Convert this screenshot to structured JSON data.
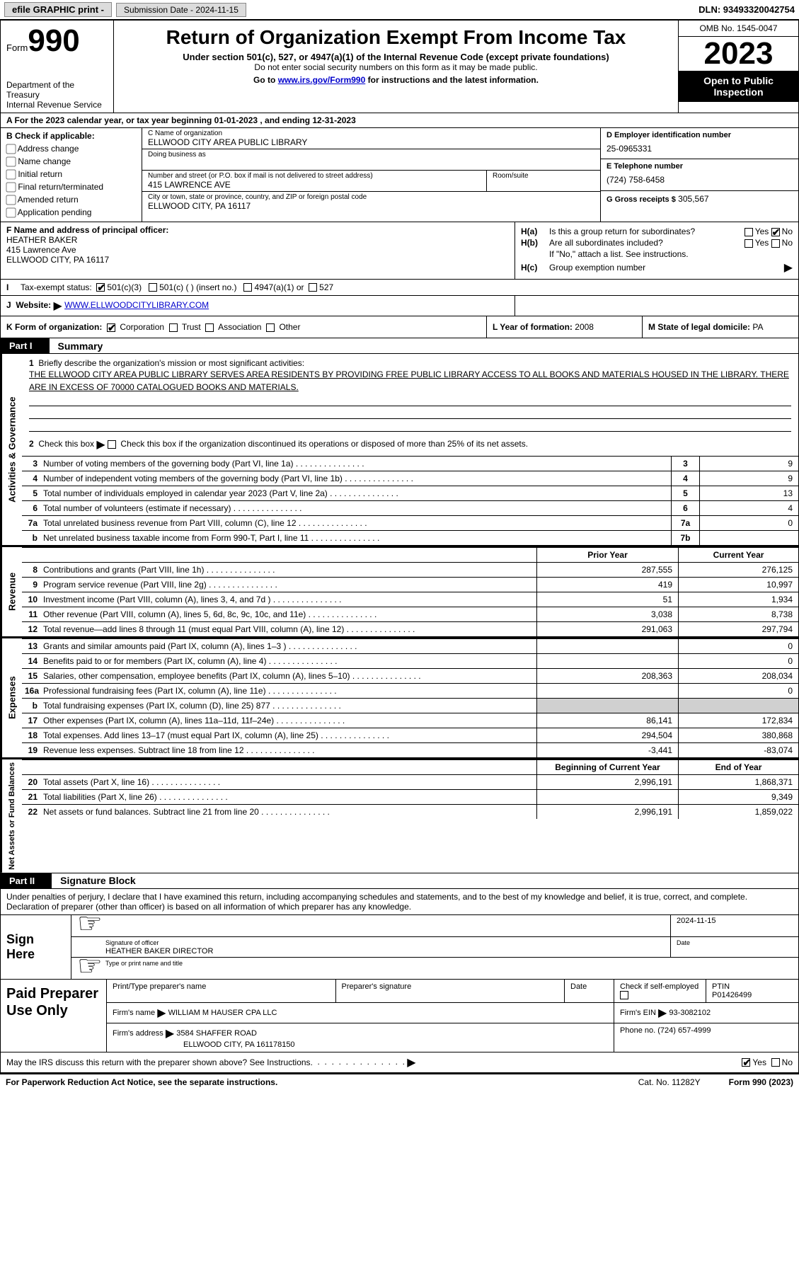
{
  "topbar": {
    "efile": "efile GRAPHIC print -",
    "submission_label": "Submission Date - 2024-11-15",
    "dln": "DLN: 93493320042754"
  },
  "header": {
    "form_label": "Form",
    "form_number": "990",
    "title": "Return of Organization Exempt From Income Tax",
    "sub1": "Under section 501(c), 527, or 4947(a)(1) of the Internal Revenue Code (except private foundations)",
    "sub2": "Do not enter social security numbers on this form as it may be made public.",
    "sub3_pre": "Go to ",
    "sub3_link": "www.irs.gov/Form990",
    "sub3_post": " for instructions and the latest information.",
    "dept": "Department of the Treasury",
    "irs": "Internal Revenue Service",
    "omb": "OMB No. 1545-0047",
    "year": "2023",
    "inspect": "Open to Public Inspection"
  },
  "lineA": "A For the 2023 calendar year, or tax year beginning 01-01-2023   , and ending 12-31-2023",
  "sectionB": {
    "hdr": "B Check if applicable:",
    "opts": [
      "Address change",
      "Name change",
      "Initial return",
      "Final return/terminated",
      "Amended return",
      "Application pending"
    ]
  },
  "sectionC": {
    "name_lbl": "C Name of organization",
    "name": "ELLWOOD CITY AREA PUBLIC LIBRARY",
    "dba_lbl": "Doing business as",
    "dba": "",
    "addr_lbl": "Number and street (or P.O. box if mail is not delivered to street address)",
    "addr": "415 LAWRENCE AVE",
    "suite_lbl": "Room/suite",
    "suite": "",
    "city_lbl": "City or town, state or province, country, and ZIP or foreign postal code",
    "city": "ELLWOOD CITY, PA  16117"
  },
  "sectionD": {
    "ein_lbl": "D Employer identification number",
    "ein": "25-0965331",
    "phone_lbl": "E Telephone number",
    "phone": "(724) 758-6458",
    "gross_lbl": "G Gross receipts $",
    "gross": "305,567"
  },
  "sectionF": {
    "lbl": "F Name and address of principal officer:",
    "name": "HEATHER BAKER",
    "addr1": "415 Lawrence Ave",
    "addr2": "ELLWOOD CITY, PA  16117"
  },
  "sectionH": {
    "ha": "Is this a group return for subordinates?",
    "hb": "Are all subordinates included?",
    "hb_note": "If \"No,\" attach a list. See instructions.",
    "hc": "Group exemption number",
    "yes": "Yes",
    "no": "No",
    "ha_lbl": "H(a)",
    "hb_lbl": "H(b)",
    "hc_lbl": "H(c)"
  },
  "sectionI": {
    "lbl": "Tax-exempt status:",
    "o1": "501(c)(3)",
    "o2": "501(c) (  ) (insert no.)",
    "o3": "4947(a)(1) or",
    "o4": "527"
  },
  "sectionJ": {
    "lbl": "Website:",
    "url": "WWW.ELLWOODCITYLIBRARY.COM"
  },
  "sectionK": {
    "lbl": "K Form of organization:",
    "o1": "Corporation",
    "o2": "Trust",
    "o3": "Association",
    "o4": "Other"
  },
  "sectionL": {
    "lbl": "L Year of formation:",
    "val": "2008"
  },
  "sectionM": {
    "lbl": "M State of legal domicile:",
    "val": "PA"
  },
  "part1": {
    "tab": "Part I",
    "title": "Summary",
    "q1": "Briefly describe the organization's mission or most significant activities:",
    "q1_ans": "THE ELLWOOD CITY AREA PUBLIC LIBRARY SERVES AREA RESIDENTS BY PROVIDING FREE PUBLIC LIBRARY ACCESS TO ALL BOOKS AND MATERIALS HOUSED IN THE LIBRARY. THERE ARE IN EXCESS OF 70000 CATALOGUED BOOKS AND MATERIALS.",
    "q2": "Check this box    if the organization discontinued its operations or disposed of more than 25% of its net assets.",
    "vlabels": {
      "gov": "Activities & Governance",
      "rev": "Revenue",
      "exp": "Expenses",
      "net": "Net Assets or Fund Balances"
    },
    "lines_gov": [
      {
        "n": "3",
        "d": "Number of voting members of the governing body (Part VI, line 1a)",
        "box": "3",
        "val": "9"
      },
      {
        "n": "4",
        "d": "Number of independent voting members of the governing body (Part VI, line 1b)",
        "box": "4",
        "val": "9"
      },
      {
        "n": "5",
        "d": "Total number of individuals employed in calendar year 2023 (Part V, line 2a)",
        "box": "5",
        "val": "13"
      },
      {
        "n": "6",
        "d": "Total number of volunteers (estimate if necessary)",
        "box": "6",
        "val": "4"
      },
      {
        "n": "7a",
        "d": "Total unrelated business revenue from Part VIII, column (C), line 12",
        "box": "7a",
        "val": "0"
      },
      {
        "n": "b",
        "d": "Net unrelated business taxable income from Form 990-T, Part I, line 11",
        "box": "7b",
        "val": ""
      }
    ],
    "col_hdrs": {
      "prior": "Prior Year",
      "current": "Current Year"
    },
    "lines_rev": [
      {
        "n": "8",
        "d": "Contributions and grants (Part VIII, line 1h)",
        "c1": "287,555",
        "c2": "276,125"
      },
      {
        "n": "9",
        "d": "Program service revenue (Part VIII, line 2g)",
        "c1": "419",
        "c2": "10,997"
      },
      {
        "n": "10",
        "d": "Investment income (Part VIII, column (A), lines 3, 4, and 7d )",
        "c1": "51",
        "c2": "1,934"
      },
      {
        "n": "11",
        "d": "Other revenue (Part VIII, column (A), lines 5, 6d, 8c, 9c, 10c, and 11e)",
        "c1": "3,038",
        "c2": "8,738"
      },
      {
        "n": "12",
        "d": "Total revenue—add lines 8 through 11 (must equal Part VIII, column (A), line 12)",
        "c1": "291,063",
        "c2": "297,794"
      }
    ],
    "lines_exp": [
      {
        "n": "13",
        "d": "Grants and similar amounts paid (Part IX, column (A), lines 1–3 )",
        "c1": "",
        "c2": "0"
      },
      {
        "n": "14",
        "d": "Benefits paid to or for members (Part IX, column (A), line 4)",
        "c1": "",
        "c2": "0"
      },
      {
        "n": "15",
        "d": "Salaries, other compensation, employee benefits (Part IX, column (A), lines 5–10)",
        "c1": "208,363",
        "c2": "208,034"
      },
      {
        "n": "16a",
        "d": "Professional fundraising fees (Part IX, column (A), line 11e)",
        "c1": "",
        "c2": "0"
      },
      {
        "n": "b",
        "d": "Total fundraising expenses (Part IX, column (D), line 25) 877",
        "c1": "grey",
        "c2": "grey"
      },
      {
        "n": "17",
        "d": "Other expenses (Part IX, column (A), lines 11a–11d, 11f–24e)",
        "c1": "86,141",
        "c2": "172,834"
      },
      {
        "n": "18",
        "d": "Total expenses. Add lines 13–17 (must equal Part IX, column (A), line 25)",
        "c1": "294,504",
        "c2": "380,868"
      },
      {
        "n": "19",
        "d": "Revenue less expenses. Subtract line 18 from line 12",
        "c1": "-3,441",
        "c2": "-83,074"
      }
    ],
    "net_hdrs": {
      "begin": "Beginning of Current Year",
      "end": "End of Year"
    },
    "lines_net": [
      {
        "n": "20",
        "d": "Total assets (Part X, line 16)",
        "c1": "2,996,191",
        "c2": "1,868,371"
      },
      {
        "n": "21",
        "d": "Total liabilities (Part X, line 26)",
        "c1": "",
        "c2": "9,349"
      },
      {
        "n": "22",
        "d": "Net assets or fund balances. Subtract line 21 from line 20",
        "c1": "2,996,191",
        "c2": "1,859,022"
      }
    ]
  },
  "part2": {
    "tab": "Part II",
    "title": "Signature Block",
    "decl": "Under penalties of perjury, I declare that I have examined this return, including accompanying schedules and statements, and to the best of my knowledge and belief, it is true, correct, and complete. Declaration of preparer (other than officer) is based on all information of which preparer has any knowledge.",
    "sign_here": "Sign Here",
    "sig_date": "2024-11-15",
    "sig_lbl": "Signature of officer",
    "date_lbl": "Date",
    "officer": "HEATHER BAKER  DIRECTOR",
    "officer_lbl": "Type or print name and title",
    "paid": "Paid Preparer Use Only",
    "prep_name_lbl": "Print/Type preparer's name",
    "prep_sig_lbl": "Preparer's signature",
    "check_lbl": "Check       if self-employed",
    "ptin_lbl": "PTIN",
    "ptin": "P01426499",
    "firm_name_lbl": "Firm's name",
    "firm_name": "WILLIAM M HAUSER CPA LLC",
    "firm_ein_lbl": "Firm's EIN",
    "firm_ein": "93-3082102",
    "firm_addr_lbl": "Firm's address",
    "firm_addr1": "3584 SHAFFER ROAD",
    "firm_addr2": "ELLWOOD CITY, PA  161178150",
    "phone_lbl": "Phone no.",
    "phone": "(724) 657-4999",
    "discuss": "May the IRS discuss this return with the preparer shown above? See Instructions.",
    "yes": "Yes",
    "no": "No"
  },
  "footer": {
    "l": "For Paperwork Reduction Act Notice, see the separate instructions.",
    "c": "Cat. No. 11282Y",
    "r": "Form 990 (2023)"
  }
}
